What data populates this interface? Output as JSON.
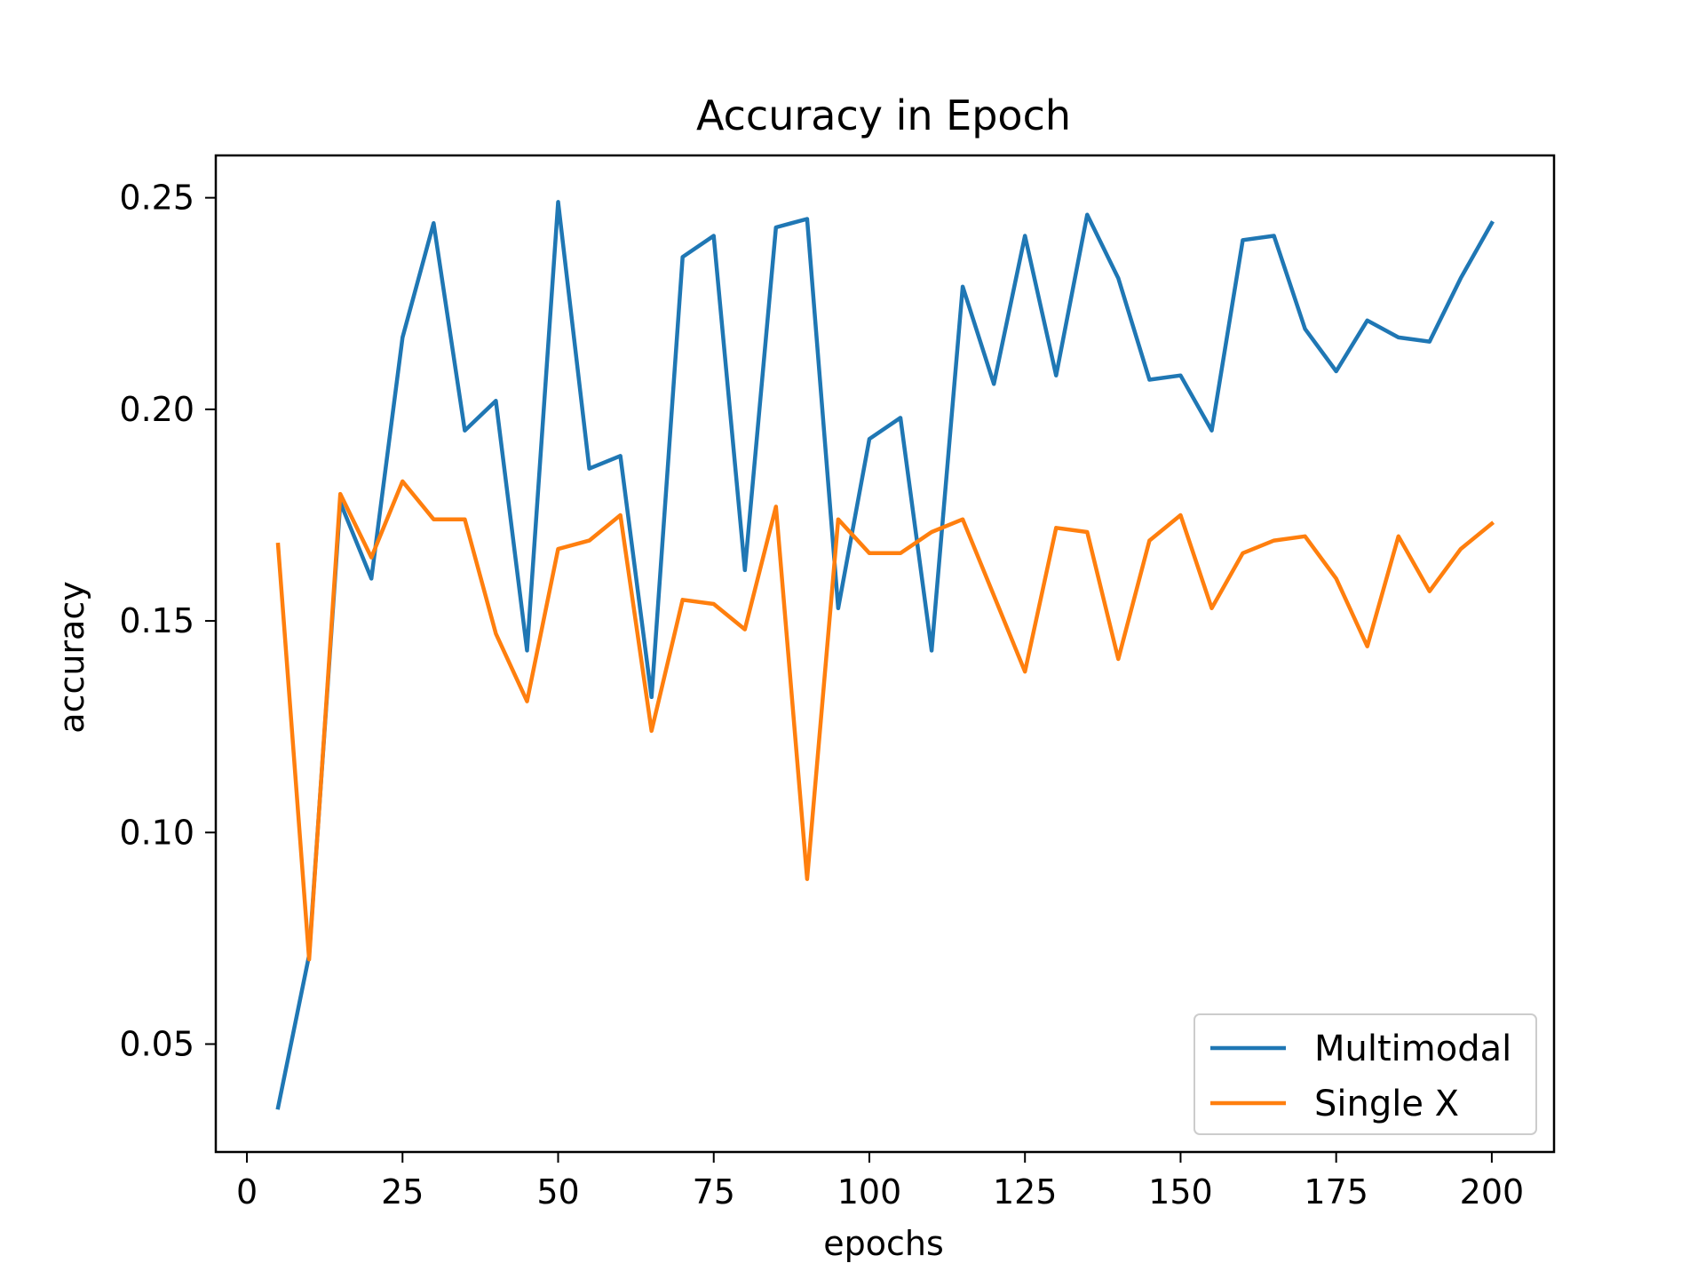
{
  "chart_data": {
    "type": "line",
    "title": "Accuracy in Epoch",
    "xlabel": "epochs",
    "ylabel": "accuracy",
    "xlim": [
      -5,
      210
    ],
    "ylim": [
      0.0245,
      0.26
    ],
    "xticks": [
      0,
      25,
      50,
      75,
      100,
      125,
      150,
      175,
      200
    ],
    "xtick_labels": [
      "0",
      "25",
      "50",
      "75",
      "100",
      "125",
      "150",
      "175",
      "200"
    ],
    "yticks": [
      0.05,
      0.1,
      0.15,
      0.2,
      0.25
    ],
    "ytick_labels": [
      "0.05",
      "0.10",
      "0.15",
      "0.20",
      "0.25"
    ],
    "grid": false,
    "legend_position": "lower-right",
    "x": [
      5,
      10,
      15,
      20,
      25,
      30,
      35,
      40,
      45,
      50,
      55,
      60,
      65,
      70,
      75,
      80,
      85,
      90,
      95,
      100,
      105,
      110,
      115,
      120,
      125,
      130,
      135,
      140,
      145,
      150,
      155,
      160,
      165,
      170,
      175,
      180,
      185,
      190,
      195,
      200
    ],
    "series": [
      {
        "name": "Multimodal",
        "color": "#1f77b4",
        "values": [
          0.035,
          0.071,
          0.178,
          0.16,
          0.217,
          0.244,
          0.195,
          0.202,
          0.143,
          0.249,
          0.186,
          0.189,
          0.132,
          0.236,
          0.241,
          0.162,
          0.243,
          0.245,
          0.153,
          0.193,
          0.198,
          0.143,
          0.229,
          0.206,
          0.241,
          0.208,
          0.246,
          0.231,
          0.207,
          0.208,
          0.195,
          0.24,
          0.241,
          0.219,
          0.209,
          0.221,
          0.217,
          0.216,
          0.231,
          0.244
        ]
      },
      {
        "name": "Single X",
        "color": "#ff7f0e",
        "values": [
          0.168,
          0.07,
          0.18,
          0.165,
          0.183,
          0.174,
          0.174,
          0.147,
          0.131,
          0.167,
          0.169,
          0.175,
          0.124,
          0.155,
          0.154,
          0.148,
          0.177,
          0.089,
          0.174,
          0.166,
          0.166,
          0.171,
          0.174,
          0.156,
          0.138,
          0.172,
          0.171,
          0.141,
          0.169,
          0.175,
          0.153,
          0.166,
          0.169,
          0.17,
          0.16,
          0.144,
          0.17,
          0.157,
          0.167,
          0.173
        ]
      }
    ]
  }
}
